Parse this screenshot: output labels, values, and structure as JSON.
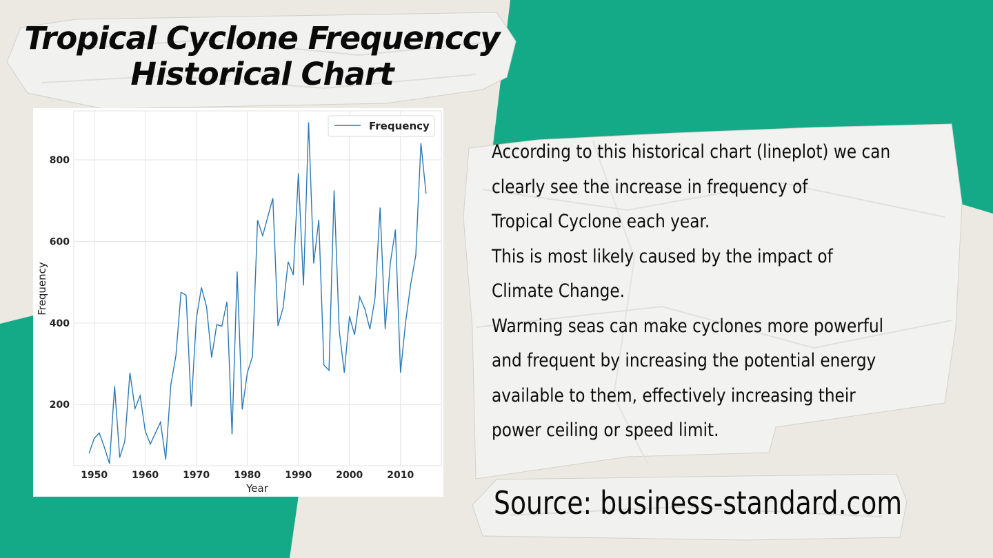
{
  "title_lines": [
    "Tropical Cyclone Frequenccy",
    "Historical Chart"
  ],
  "description_lines": [
    "According to this historical chart  (lineplot) we can",
    "clearly see the increase in frequency of",
    "Tropical Cyclone each year.",
    "This is most likely caused by the impact of",
    "Climate Change.",
    "Warming seas can make cyclones more powerful",
    "and frequent by increasing  the potential energy",
    "available to them, effectively increasing their",
    "power ceiling or speed limit."
  ],
  "source": "Source: business-standard.com",
  "colors": {
    "accent_green": "#14aa88",
    "background": "#ebe9e2",
    "paper": "#f3f3f1",
    "line": "#2b78b4"
  },
  "chart_data": {
    "type": "line",
    "xlabel": "Year",
    "ylabel": "Frequency",
    "xlim": [
      1946,
      2018
    ],
    "ylim": [
      50,
      920
    ],
    "x_ticks": [
      1950,
      1960,
      1970,
      1980,
      1990,
      2000,
      2010
    ],
    "y_ticks": [
      200,
      400,
      600,
      800
    ],
    "grid": true,
    "legend_position": "top-right",
    "series": [
      {
        "name": "Frequency",
        "x": [
          1949,
          1950,
          1951,
          1952,
          1953,
          1954,
          1955,
          1956,
          1957,
          1958,
          1959,
          1960,
          1961,
          1962,
          1963,
          1964,
          1965,
          1966,
          1967,
          1968,
          1969,
          1970,
          1971,
          1972,
          1973,
          1974,
          1975,
          1976,
          1977,
          1978,
          1979,
          1980,
          1981,
          1982,
          1983,
          1984,
          1985,
          1986,
          1987,
          1988,
          1989,
          1990,
          1991,
          1992,
          1993,
          1994,
          1995,
          1996,
          1997,
          1998,
          1999,
          2000,
          2001,
          2002,
          2003,
          2004,
          2005,
          2006,
          2007,
          2008,
          2009,
          2010,
          2011,
          2012,
          2013,
          2014,
          2015
        ],
        "values": [
          80,
          117,
          130,
          95,
          55,
          245,
          70,
          110,
          278,
          190,
          222,
          135,
          103,
          130,
          157,
          65,
          248,
          320,
          475,
          468,
          195,
          410,
          487,
          440,
          315,
          396,
          392,
          452,
          127,
          526,
          188,
          278,
          318,
          652,
          614,
          660,
          706,
          393,
          437,
          550,
          518,
          767,
          492,
          892,
          546,
          653,
          297,
          284,
          725,
          382,
          278,
          416,
          371,
          464,
          435,
          385,
          461,
          683,
          385,
          547,
          629,
          278,
          402,
          495,
          567,
          841,
          717
        ]
      }
    ]
  }
}
